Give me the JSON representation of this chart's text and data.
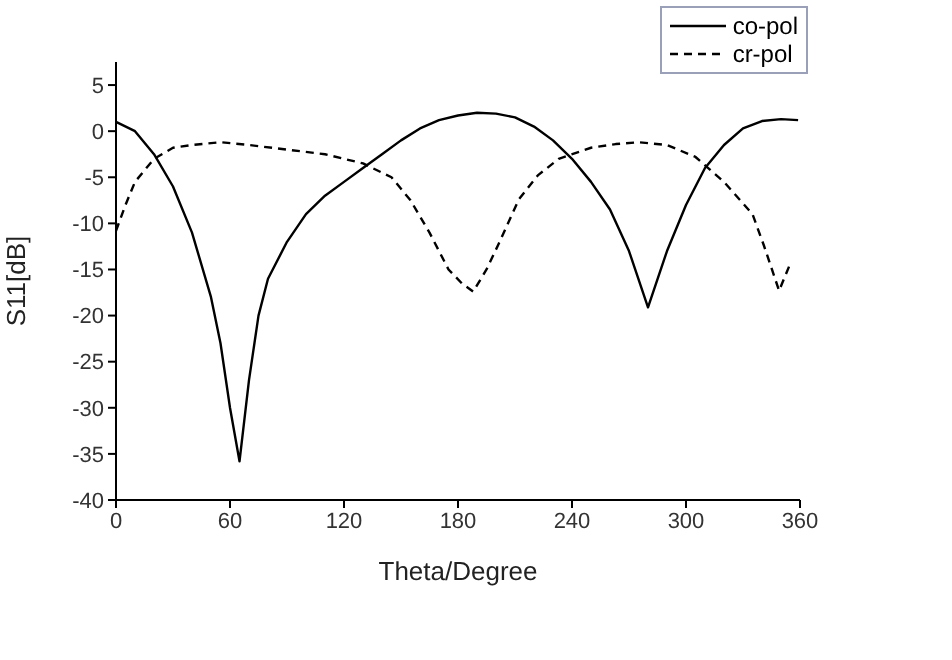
{
  "chart_data": {
    "type": "line",
    "xlabel": "Theta/Degree",
    "ylabel": "S11[dB]",
    "xlim": [
      0,
      360
    ],
    "xticks": [
      0,
      60,
      120,
      180,
      240,
      300,
      360
    ],
    "ylim": [
      -40,
      7.5
    ],
    "yticks": [
      -40,
      -35,
      -30,
      -25,
      -20,
      -15,
      -10,
      -5,
      0,
      5
    ],
    "grid": false,
    "legend": "top right",
    "marker": "none",
    "series": [
      {
        "name": "co-pol",
        "color": "#000000",
        "line_style": "solid",
        "x": [
          0,
          10,
          20,
          30,
          40,
          50,
          55,
          60,
          65,
          70,
          75,
          80,
          90,
          100,
          110,
          120,
          130,
          140,
          150,
          160,
          170,
          180,
          190,
          200,
          210,
          220,
          230,
          240,
          250,
          260,
          270,
          280,
          290,
          300,
          310,
          320,
          330,
          340,
          350,
          359
        ],
        "values": [
          1,
          0,
          -2.5,
          -6,
          -11,
          -18,
          -23,
          -30,
          -35.8,
          -27,
          -20,
          -16,
          -12,
          -9,
          -7,
          -5.5,
          -4,
          -2.5,
          -1,
          0.3,
          1.2,
          1.7,
          2,
          1.9,
          1.5,
          0.5,
          -1,
          -3,
          -5.5,
          -8.5,
          -13,
          -19.1,
          -13,
          -8,
          -4,
          -1.5,
          0.3,
          1.1,
          1.3,
          1.2
        ]
      },
      {
        "name": "cr-pol",
        "color": "#000000",
        "line_style": "dashed",
        "x": [
          0,
          5,
          10,
          20,
          30,
          40,
          55,
          70,
          90,
          110,
          130,
          145,
          155,
          165,
          175,
          182,
          188,
          195,
          201,
          212,
          222,
          233,
          250,
          263,
          275,
          290,
          305,
          320,
          335,
          341,
          349,
          355
        ],
        "values": [
          -10.8,
          -8,
          -5.5,
          -3,
          -1.8,
          -1.5,
          -1.2,
          -1.5,
          -2,
          -2.5,
          -3.5,
          -5,
          -7.5,
          -11,
          -15,
          -16.5,
          -17.4,
          -15,
          -12.4,
          -7.4,
          -4.8,
          -3,
          -1.8,
          -1.4,
          -1.2,
          -1.5,
          -2.8,
          -5.5,
          -9,
          -12.4,
          -17.3,
          -14.3
        ]
      }
    ]
  }
}
